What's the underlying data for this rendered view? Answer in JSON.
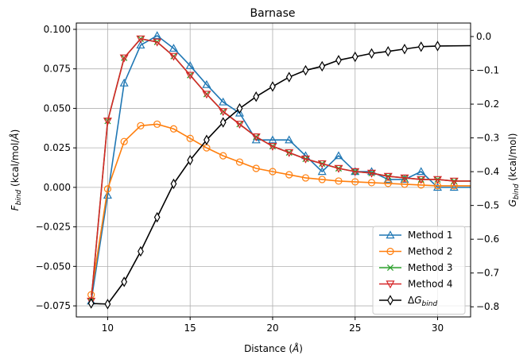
{
  "chart_data": {
    "type": "line",
    "title": "Barnase",
    "xlabel": "Distance (Å)",
    "ylabel_left": "F_bind (kcal/mol/Å)",
    "ylabel_right": "G_bind (kcal/mol)",
    "xlim": [
      8.1,
      32
    ],
    "ylim_left": [
      -0.082,
      0.104
    ],
    "ylim_right": [
      -0.83,
      0.04
    ],
    "x_ticks": [
      10,
      15,
      20,
      25,
      30
    ],
    "y_ticks_left": [
      -0.075,
      -0.05,
      -0.025,
      0.0,
      0.025,
      0.05,
      0.075,
      0.1
    ],
    "y_tick_labels_left": [
      "−0.075",
      "−0.050",
      "−0.025",
      "0.000",
      "0.025",
      "0.050",
      "0.075",
      "0.100"
    ],
    "y_ticks_right": [
      -0.8,
      -0.7,
      -0.6,
      -0.5,
      -0.4,
      -0.3,
      -0.2,
      -0.1,
      0.0
    ],
    "y_tick_labels_right": [
      "−0.8",
      "−0.7",
      "−0.6",
      "−0.5",
      "−0.4",
      "−0.3",
      "−0.2",
      "−0.1",
      "0.0"
    ],
    "grid": true,
    "legend_position": "bottom-right",
    "series": [
      {
        "name": "Method 1",
        "axis": "left",
        "color": "#1f77b4",
        "marker": "triangle-up",
        "x": [
          9,
          10,
          11,
          12,
          13,
          14,
          15,
          16,
          17,
          18,
          19,
          20,
          21,
          22,
          23,
          24,
          25,
          26,
          27,
          28,
          29,
          30,
          31,
          32
        ],
        "y": [
          -0.072,
          -0.005,
          0.066,
          0.09,
          0.096,
          0.088,
          0.077,
          0.065,
          0.054,
          0.047,
          0.03,
          0.03,
          0.03,
          0.02,
          0.01,
          0.02,
          0.01,
          0.01,
          0.005,
          0.005,
          0.01,
          0.0,
          0.0,
          0.0
        ]
      },
      {
        "name": "Method 2",
        "axis": "left",
        "color": "#ff7f0e",
        "marker": "circle",
        "x": [
          9,
          10,
          11,
          12,
          13,
          14,
          15,
          16,
          17,
          18,
          19,
          20,
          21,
          22,
          23,
          24,
          25,
          26,
          27,
          28,
          29,
          30,
          31,
          32
        ],
        "y": [
          -0.068,
          -0.001,
          0.029,
          0.039,
          0.04,
          0.037,
          0.031,
          0.025,
          0.02,
          0.016,
          0.012,
          0.01,
          0.008,
          0.006,
          0.005,
          0.004,
          0.0035,
          0.003,
          0.0025,
          0.002,
          0.0015,
          0.001,
          0.001,
          0.001
        ]
      },
      {
        "name": "Method 3",
        "axis": "left",
        "color": "#2ca02c",
        "marker": "x",
        "x": [
          9,
          10,
          11,
          12,
          13,
          14,
          15,
          16,
          17,
          18,
          19,
          20,
          21,
          22,
          23,
          24,
          25,
          26,
          27,
          28,
          29,
          30,
          31,
          32
        ],
        "y": [
          -0.072,
          0.042,
          0.082,
          0.094,
          0.092,
          0.083,
          0.071,
          0.059,
          0.048,
          0.04,
          0.032,
          0.026,
          0.022,
          0.018,
          0.015,
          0.012,
          0.01,
          0.009,
          0.007,
          0.006,
          0.005,
          0.005,
          0.004,
          0.004
        ]
      },
      {
        "name": "Method 4",
        "axis": "left",
        "color": "#d62728",
        "marker": "triangle-down",
        "x": [
          9,
          10,
          11,
          12,
          13,
          14,
          15,
          16,
          17,
          18,
          19,
          20,
          21,
          22,
          23,
          24,
          25,
          26,
          27,
          28,
          29,
          30,
          31,
          32
        ],
        "y": [
          -0.072,
          0.042,
          0.082,
          0.094,
          0.092,
          0.083,
          0.071,
          0.059,
          0.048,
          0.04,
          0.032,
          0.026,
          0.022,
          0.018,
          0.015,
          0.012,
          0.01,
          0.009,
          0.007,
          0.006,
          0.005,
          0.005,
          0.004,
          0.004
        ]
      },
      {
        "name": "ΔG_bind",
        "axis": "right",
        "color": "#000000",
        "marker": "thin-diamond",
        "x": [
          9,
          10,
          11,
          12,
          13,
          14,
          15,
          16,
          17,
          18,
          19,
          20,
          21,
          22,
          23,
          24,
          25,
          26,
          27,
          28,
          29,
          30,
          32
        ],
        "y": [
          -0.79,
          -0.792,
          -0.726,
          -0.636,
          -0.535,
          -0.436,
          -0.366,
          -0.306,
          -0.254,
          -0.213,
          -0.178,
          -0.148,
          -0.12,
          -0.1,
          -0.088,
          -0.07,
          -0.06,
          -0.05,
          -0.044,
          -0.037,
          -0.03,
          -0.028,
          -0.027
        ]
      }
    ]
  }
}
